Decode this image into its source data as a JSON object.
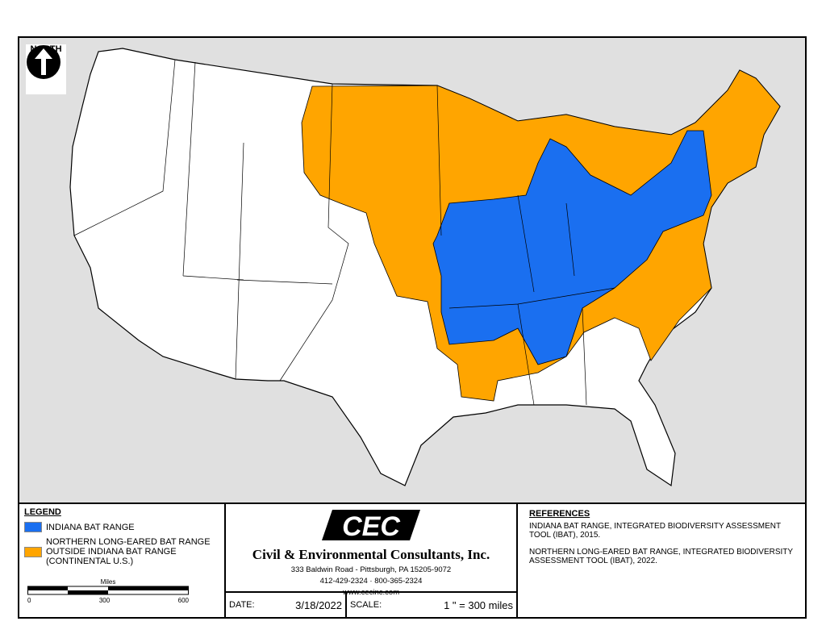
{
  "colors": {
    "indiana_bat": "#1a6ff0",
    "northern_long_eared_bat": "#ffa500",
    "land": "#ffffff",
    "background": "#e0e0e0"
  },
  "north_arrow": {
    "icon": "north-arrow-icon",
    "label": "NORTH"
  },
  "legend": {
    "title": "LEGEND",
    "items": [
      {
        "label": "INDIANA BAT RANGE",
        "color": "#1a6ff0"
      },
      {
        "label_lines": [
          "NORTHERN LONG-EARED BAT RANGE",
          "OUTSIDE INDIANA BAT RANGE",
          "(CONTINENTAL U.S.)"
        ],
        "color": "#ffa500"
      }
    ],
    "scale_bar": {
      "unit": "Miles",
      "ticks": [
        "0",
        "300",
        "600"
      ]
    }
  },
  "company": {
    "logo_text": "CEC",
    "name": "Civil & Environmental Consultants, Inc.",
    "address": "333 Baldwin Road - Pittsburgh, PA 15205-9072",
    "phone": "412-429-2324 · 800-365-2324",
    "website": "www.cecinc.com"
  },
  "info": {
    "date_label": "DATE:",
    "date": "3/18/2022",
    "scale_label": "SCALE:",
    "scale": "1 \" = 300 miles"
  },
  "references": {
    "title": "REFERENCES",
    "items": [
      "INDIANA BAT RANGE, INTEGRATED BIODIVERSITY ASSESSMENT TOOL (IBAT), 2015.",
      "NORTHERN LONG-EARED BAT RANGE, INTEGRATED BIODIVERSITY ASSESSMENT TOOL (IBAT), 2022."
    ]
  }
}
